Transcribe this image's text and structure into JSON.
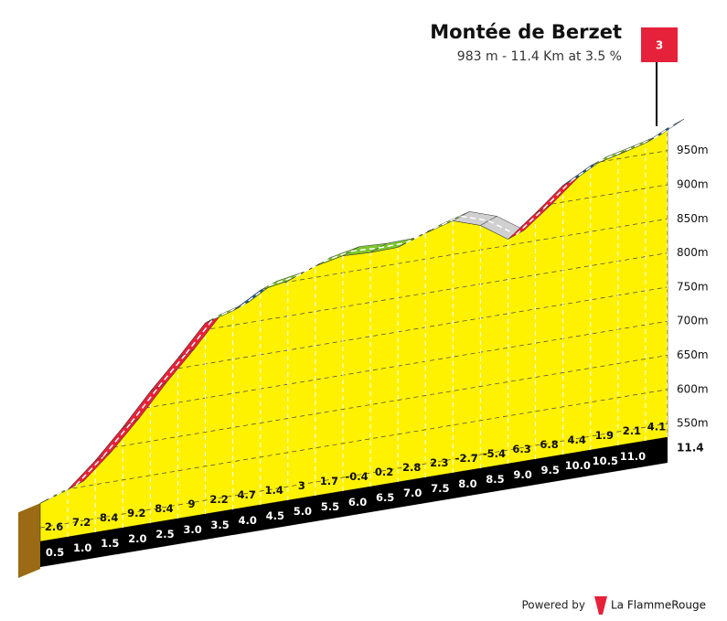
{
  "chart_data": {
    "type": "profile",
    "title": "Montée de Berzet",
    "subtitle": "983 m - 11.4 Km at 3.5 %",
    "category": "3",
    "x": [
      0,
      0.5,
      1.0,
      1.5,
      2.0,
      2.5,
      3.0,
      3.5,
      4.0,
      4.5,
      5.0,
      5.5,
      6.0,
      6.5,
      7.0,
      7.5,
      8.0,
      8.5,
      9.0,
      9.5,
      10.0,
      10.5,
      11.0,
      11.4
    ],
    "values": [
      586,
      599,
      635,
      677,
      723,
      765,
      810,
      821,
      844.5,
      851.5,
      866.5,
      875,
      873,
      874,
      888,
      899.5,
      886,
      859,
      890.5,
      924.5,
      946.5,
      956,
      966.5,
      983
    ],
    "gradients": [
      2.6,
      7.2,
      8.4,
      9.2,
      8.4,
      9.0,
      2.2,
      4.7,
      1.4,
      3.0,
      1.7,
      -0.4,
      0.2,
      2.8,
      2.3,
      -2.7,
      -5.4,
      6.3,
      6.8,
      4.4,
      1.9,
      2.1,
      4.1
    ],
    "gradient_colors": [
      "#7dc62e",
      "#e5223a",
      "#e5223a",
      "#e5223a",
      "#e5223a",
      "#e5223a",
      "#7dc62e",
      "#1f5f8b",
      "#7dc62e",
      "#7dc62e",
      "#7dc62e",
      "#7dc62e",
      "#7dc62e",
      "#7dc62e",
      "#7dc62e",
      "#d0d0d0",
      "#d0d0d0",
      "#e5223a",
      "#e5223a",
      "#1f5f8b",
      "#7dc62e",
      "#7dc62e",
      "#1f5f8b"
    ],
    "area_color": "#fff200",
    "xlim": [
      0,
      11.4
    ],
    "xticks": [
      0.5,
      {
        "value": 1,
        "label": "1.0"
      },
      1.5,
      {
        "value": 2,
        "label": "2.0"
      },
      2.5,
      {
        "value": 3,
        "label": "3.0"
      },
      3.5,
      {
        "value": 4,
        "label": "4.0"
      },
      4.5,
      {
        "value": 5,
        "label": "5.0"
      },
      5.5,
      {
        "value": 6,
        "label": "6.0"
      },
      6.5,
      {
        "value": 7,
        "label": "7.0"
      },
      7.5,
      {
        "value": 8,
        "label": "8.0"
      },
      8.5,
      {
        "value": 9,
        "label": "9.0"
      },
      9.5,
      {
        "value": 10,
        "label": "10.0"
      },
      10.5,
      {
        "value": 11,
        "label": "11.0"
      },
      11.4
    ],
    "ylim": [
      530,
      1000
    ],
    "yticks": [
      {
        "value": 550,
        "label": "550m"
      },
      {
        "value": 600,
        "label": "600m"
      },
      {
        "value": 650,
        "label": "650m"
      },
      {
        "value": 700,
        "label": "700m"
      },
      {
        "value": 750,
        "label": "750m"
      },
      {
        "value": 800,
        "label": "800m"
      },
      {
        "value": 850,
        "label": "850m"
      },
      {
        "value": 900,
        "label": "900m"
      },
      {
        "value": 950,
        "label": "950m"
      }
    ],
    "grid": true
  },
  "footer": {
    "powered_by": "Powered by",
    "brand": "La FlammeRouge"
  }
}
